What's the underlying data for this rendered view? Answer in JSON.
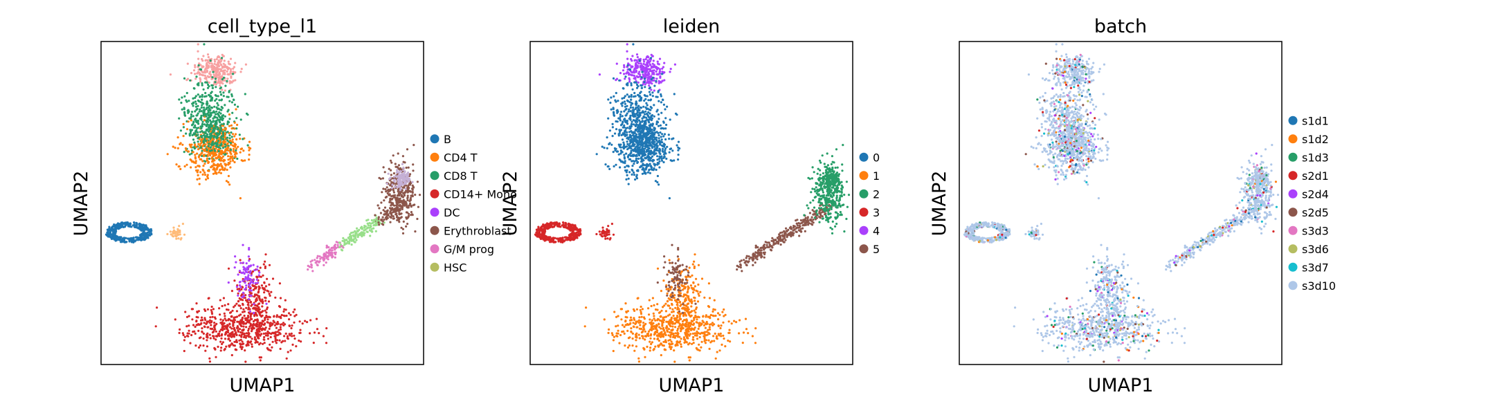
{
  "chart_data": [
    {
      "type": "scatter",
      "title": "cell_type_l1",
      "xlabel": "UMAP1",
      "ylabel": "UMAP2",
      "ticks": "none",
      "legend_position": "right",
      "legend": [
        {
          "label": "B",
          "color": "#1f77b4"
        },
        {
          "label": "CD4 T",
          "color": "#ff7f0e"
        },
        {
          "label": "CD8 T",
          "color": "#279e68"
        },
        {
          "label": "CD14+ Mono",
          "color": "#d62728"
        },
        {
          "label": "DC",
          "color": "#aa40fc"
        },
        {
          "label": "Erythroblast",
          "color": "#8c564b"
        },
        {
          "label": "G/M prog",
          "color": "#e377c2"
        },
        {
          "label": "HSC",
          "color": "#b5bd61"
        }
      ],
      "extra_colors": [
        "#f7a1a1",
        "#aec7e8",
        "#98df8a",
        "#c5b0d5",
        "#ffbb78",
        "#c49c94"
      ]
    },
    {
      "type": "scatter",
      "title": "leiden",
      "xlabel": "UMAP1",
      "ylabel": "UMAP2",
      "ticks": "none",
      "legend_position": "right",
      "legend": [
        {
          "label": "0",
          "color": "#1f77b4"
        },
        {
          "label": "1",
          "color": "#ff7f0e"
        },
        {
          "label": "2",
          "color": "#279e68"
        },
        {
          "label": "3",
          "color": "#d62728"
        },
        {
          "label": "4",
          "color": "#aa40fc"
        },
        {
          "label": "5",
          "color": "#8c564b"
        }
      ]
    },
    {
      "type": "scatter",
      "title": "batch",
      "xlabel": "UMAP1",
      "ylabel": "UMAP2",
      "ticks": "none",
      "legend_position": "right",
      "legend": [
        {
          "label": "s1d1",
          "color": "#1f77b4"
        },
        {
          "label": "s1d2",
          "color": "#ff7f0e"
        },
        {
          "label": "s1d3",
          "color": "#279e68"
        },
        {
          "label": "s2d1",
          "color": "#d62728"
        },
        {
          "label": "s2d4",
          "color": "#aa40fc"
        },
        {
          "label": "s2d5",
          "color": "#8c564b"
        },
        {
          "label": "s3d3",
          "color": "#e377c2"
        },
        {
          "label": "s3d6",
          "color": "#b5bd61"
        },
        {
          "label": "s3d7",
          "color": "#17becf"
        },
        {
          "label": "s3d10",
          "color": "#aec7e8"
        }
      ]
    }
  ]
}
